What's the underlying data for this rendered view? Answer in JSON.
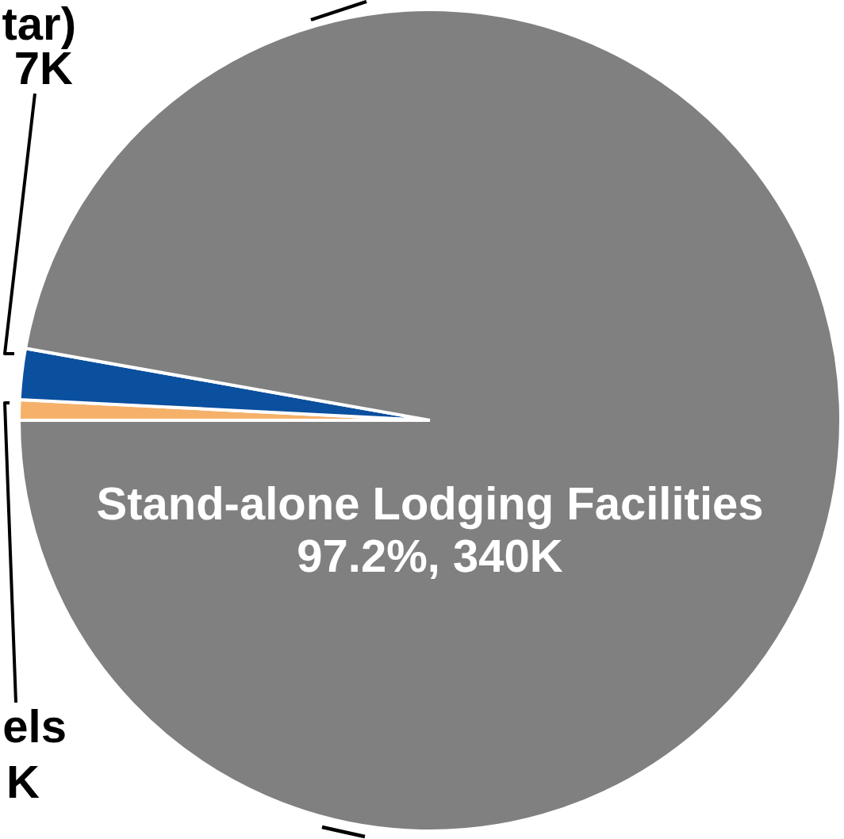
{
  "chart_data": {
    "type": "pie",
    "categories": [
      "els",
      "tar)",
      "Stand-alone Lodging Facilities"
    ],
    "values": [
      2800,
      7000,
      340000
    ],
    "colors": [
      "#f5b16a",
      "#0b4f9f",
      "#808080"
    ],
    "value_labels": [
      "K",
      "7K",
      "97.2%, 340K"
    ]
  }
}
